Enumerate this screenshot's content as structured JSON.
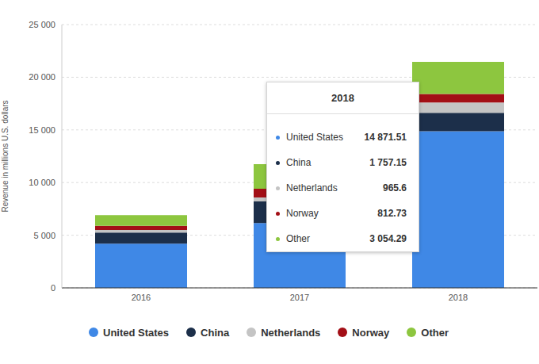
{
  "chart_data": {
    "type": "bar",
    "stacked": true,
    "grid": true,
    "legend": "bottom",
    "ylabel": "Revenue in millions U.S. dollars",
    "categories": [
      "2016",
      "2017",
      "2018"
    ],
    "ylim": [
      0,
      25000
    ],
    "yticks": [
      0,
      {
        "value": 5000,
        "label": "5 000"
      },
      {
        "value": 10000,
        "label": "10 000"
      },
      {
        "value": 15000,
        "label": "15 000"
      },
      {
        "value": 20000,
        "label": "20 000"
      },
      {
        "value": 25000,
        "label": "25 000"
      }
    ],
    "series": [
      {
        "name": "United States",
        "color": "#3f88e6",
        "values": [
          4200,
          6150,
          14871.51
        ],
        "value_labels": [
          null,
          null,
          "14 871.51"
        ]
      },
      {
        "name": "China",
        "color": "#1c2f4a",
        "values": [
          1050,
          2050,
          1757.15
        ],
        "value_labels": [
          null,
          null,
          "1 757.15"
        ]
      },
      {
        "name": "Netherlands",
        "color": "#c4c4c4",
        "values": [
          250,
          380,
          965.6
        ],
        "value_labels": [
          null,
          null,
          "965.6"
        ]
      },
      {
        "name": "Norway",
        "color": "#a30f16",
        "values": [
          400,
          830,
          812.73
        ],
        "value_labels": [
          null,
          null,
          "812.73"
        ]
      },
      {
        "name": "Other",
        "color": "#8dc63f",
        "values": [
          1000,
          2340,
          3054.29
        ],
        "value_labels": [
          null,
          null,
          "3 054.29"
        ]
      }
    ]
  }
}
